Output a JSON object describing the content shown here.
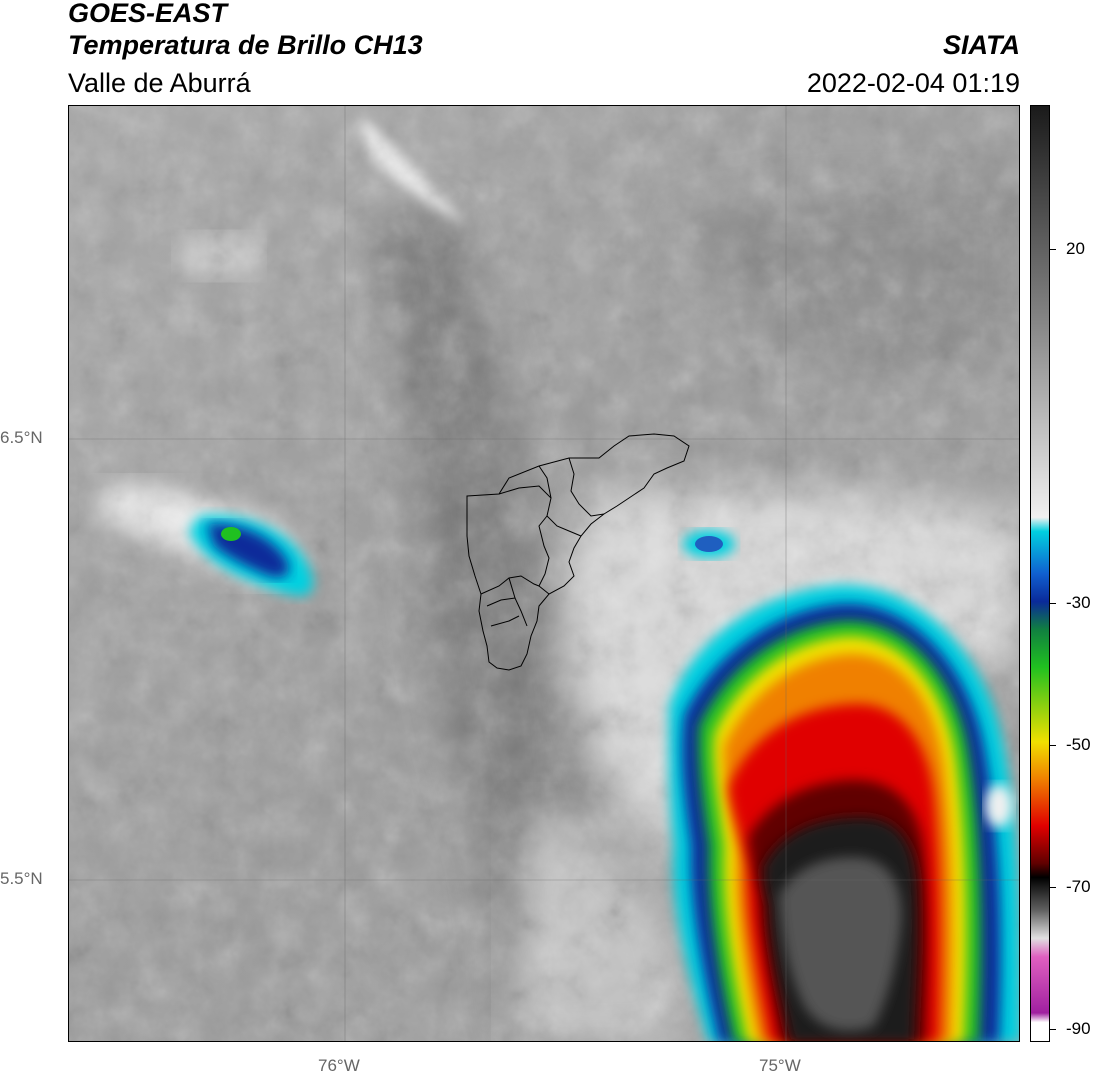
{
  "header": {
    "satellite": "GOES-EAST",
    "product": "Temperatura de Brillo CH13",
    "region": "Valle de Aburrá",
    "org": "SIATA",
    "datetime": "2022-02-04 01:19"
  },
  "map": {
    "lat_labels": [
      "6.5°N",
      "5.5°N"
    ],
    "lon_labels": [
      "76°W",
      "75°W"
    ]
  },
  "colorbar": {
    "labels": [
      "20",
      "-30",
      "-50",
      "-70",
      "-90"
    ],
    "palette": {
      "gray_light": "#f0f0f0",
      "gray_dark": "#1a1a1a",
      "cyan": "#00d0e0",
      "blue": "#0a2a9a",
      "green": "#20c020",
      "yellow": "#f0e000",
      "orange": "#f08000",
      "red": "#e00000",
      "dark_red": "#600000",
      "magenta": "#a020a0"
    }
  }
}
